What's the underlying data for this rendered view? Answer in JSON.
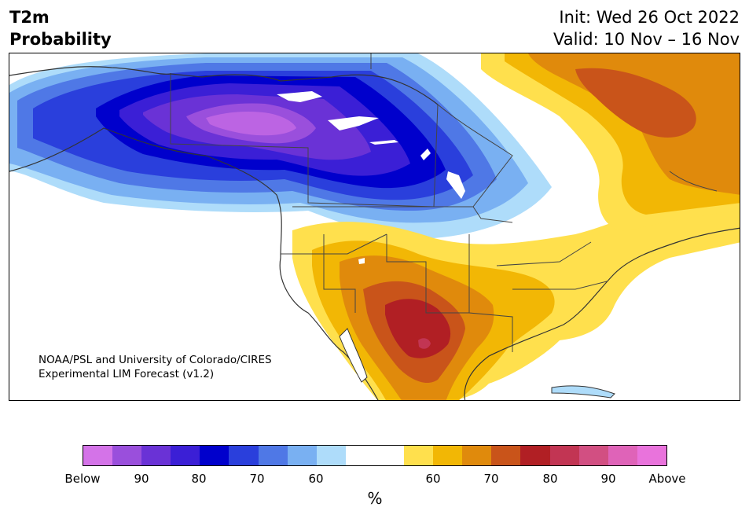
{
  "header": {
    "title_line1": "T2m",
    "title_line2": "Probability",
    "init": "Init: Wed 26 Oct 2022",
    "valid": "Valid: 10 Nov – 16 Nov"
  },
  "credit": {
    "line1": "NOAA/PSL and University of Colorado/CIRES",
    "line2": "Experimental LIM Forecast (v1.2)"
  },
  "colorbar": {
    "colors": [
      "#d473e8",
      "#9a4fdc",
      "#6a32d6",
      "#3b1fd6",
      "#0000cc",
      "#2a3fdc",
      "#4f78e6",
      "#79b0f2",
      "#aedcfa",
      "#ffffff",
      "#ffffff",
      "#ffe04d",
      "#f2b705",
      "#e08a0c",
      "#c9541a",
      "#b11f24",
      "#c23553",
      "#d24f82",
      "#df63b8",
      "#e973dc"
    ],
    "tick_labels": [
      "Below",
      "90",
      "80",
      "70",
      "60",
      "60",
      "70",
      "80",
      "90",
      "Above"
    ],
    "unit": "%"
  }
}
